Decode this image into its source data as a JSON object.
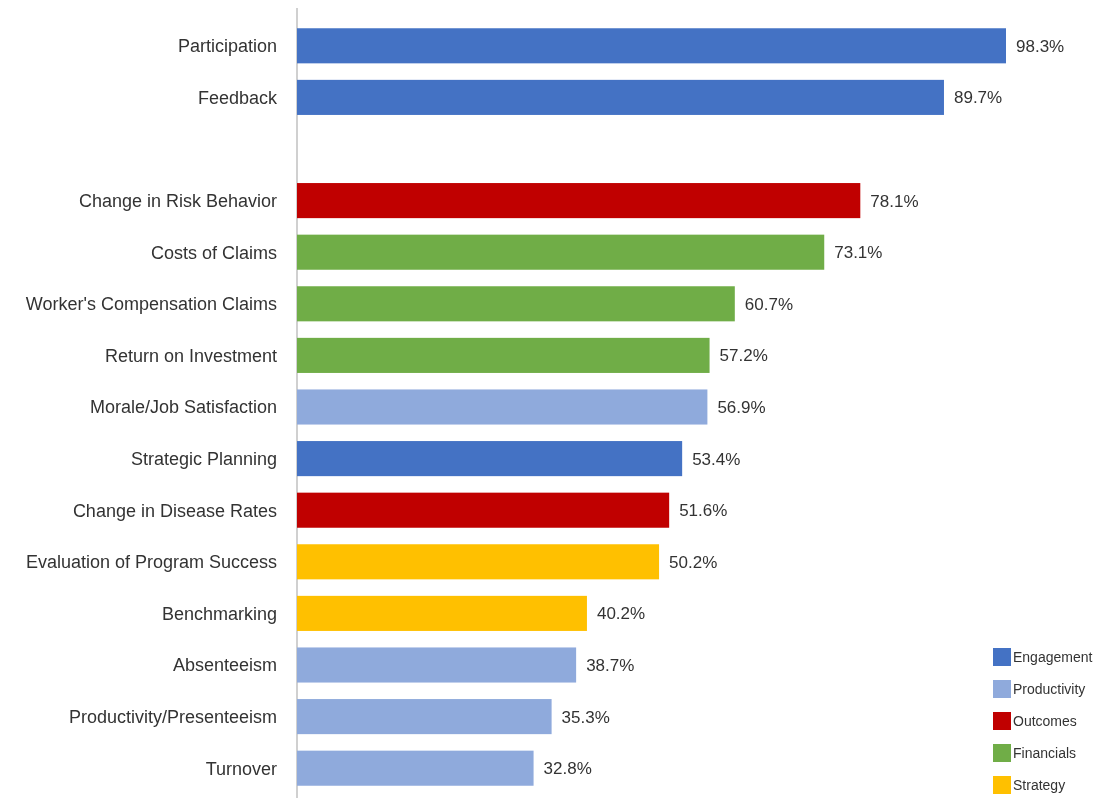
{
  "chart_data": {
    "type": "bar",
    "orientation": "horizontal",
    "stacked": true,
    "legend": "bottom right",
    "categories": [
      "Participation",
      "Feedback",
      null,
      "Change in Risk Behavior",
      "Costs of Claims",
      "Worker's Compensation Claims",
      "Return on Investment",
      "Morale/Job Satisfaction",
      "Strategic Planning",
      "Change in Disease Rates",
      "Evaluation of Program Success",
      "Benchmarking",
      "Absenteeism",
      "Productivity/Presenteeism",
      "Turnover"
    ],
    "series": [
      {
        "name": "Engagement",
        "color": "#4472c4",
        "values": [
          98.3,
          89.7,
          null,
          null,
          null,
          null,
          null,
          null,
          53.4,
          null,
          null,
          null,
          null,
          null,
          null
        ],
        "value_labels": [
          "98.3%",
          "89.7%",
          null,
          null,
          null,
          null,
          null,
          null,
          "53.4%",
          null,
          null,
          null,
          null,
          null,
          null
        ]
      },
      {
        "name": "Productivity",
        "color": "#8faadc",
        "values": [
          null,
          null,
          null,
          null,
          null,
          null,
          null,
          56.9,
          null,
          null,
          null,
          null,
          38.7,
          35.3,
          32.8
        ],
        "value_labels": [
          null,
          null,
          null,
          null,
          null,
          null,
          null,
          "56.9%",
          null,
          null,
          null,
          null,
          "38.7%",
          "35.3%",
          "32.8%"
        ]
      },
      {
        "name": "Outcomes",
        "color": "#c00000",
        "values": [
          null,
          null,
          null,
          78.1,
          null,
          null,
          null,
          null,
          null,
          51.6,
          null,
          null,
          null,
          null,
          null
        ],
        "value_labels": [
          null,
          null,
          null,
          "78.1%",
          null,
          null,
          null,
          null,
          null,
          "51.6%",
          null,
          null,
          null,
          null,
          null
        ]
      },
      {
        "name": "Financials",
        "color": "#70ad47",
        "values": [
          null,
          null,
          null,
          null,
          73.1,
          60.7,
          57.2,
          null,
          null,
          null,
          null,
          null,
          null,
          null,
          null
        ],
        "value_labels": [
          null,
          null,
          null,
          null,
          "73.1%",
          "60.7%",
          "57.2%",
          null,
          null,
          null,
          null,
          null,
          null,
          null,
          null
        ]
      },
      {
        "name": "Strategy",
        "color": "#ffc000",
        "values": [
          null,
          null,
          null,
          null,
          null,
          null,
          null,
          null,
          null,
          null,
          50.2,
          40.2,
          null,
          null,
          null
        ],
        "value_labels": [
          null,
          null,
          null,
          null,
          null,
          null,
          null,
          null,
          null,
          null,
          "50.2%",
          "40.2%",
          null,
          null,
          null
        ]
      }
    ]
  }
}
